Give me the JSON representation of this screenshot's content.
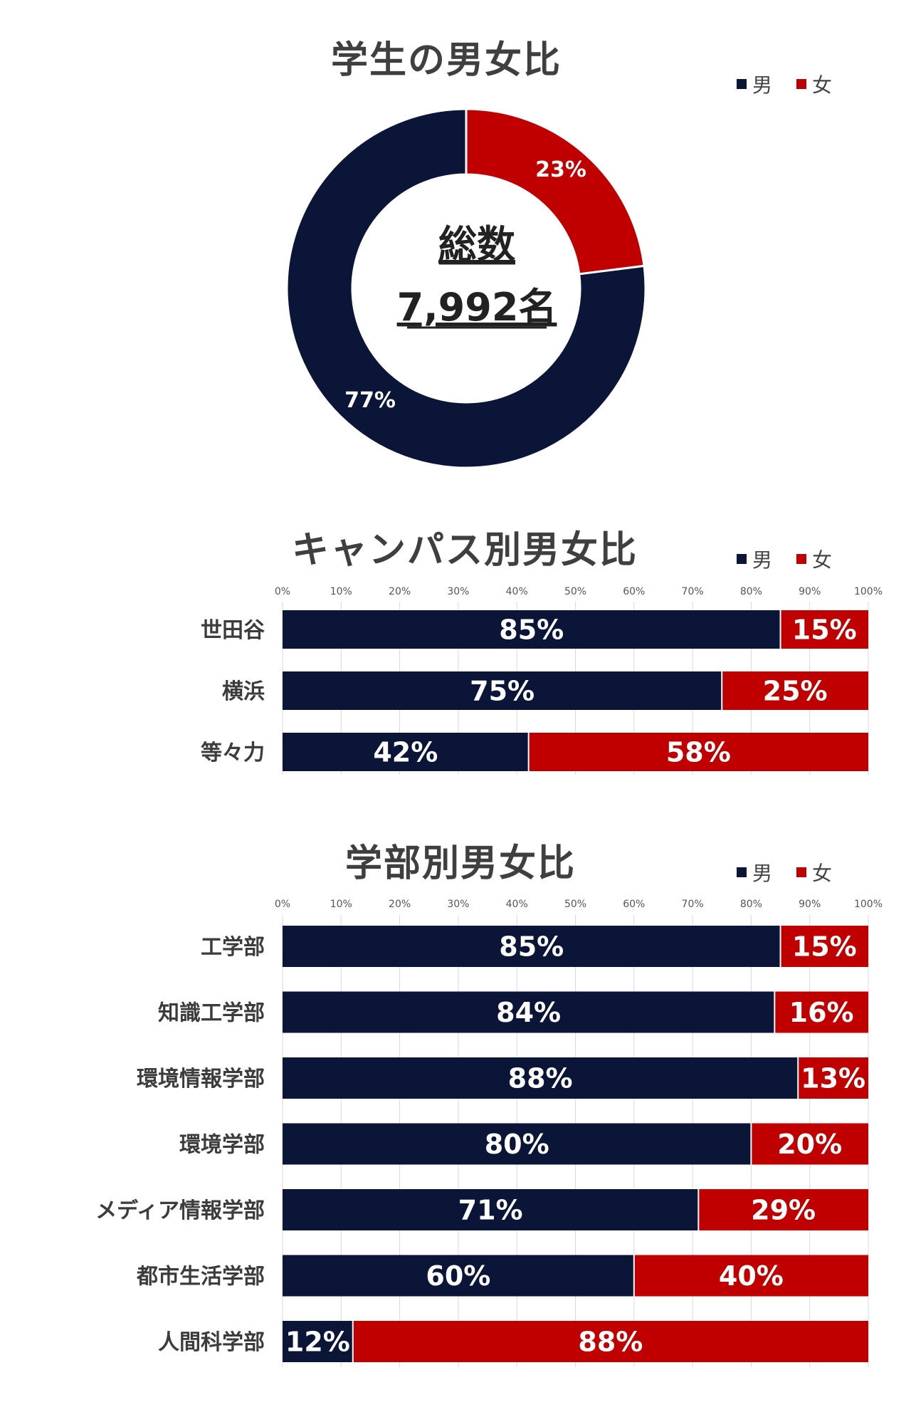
{
  "colors": {
    "male": "#0b1538",
    "female": "#c00000",
    "grid": "#d9d9d9"
  },
  "legend": {
    "male": "男",
    "female": "女"
  },
  "donut": {
    "center_title": "総数",
    "center_value": "7,992名"
  },
  "chart_data": [
    {
      "type": "pie",
      "title": "学生の男女比",
      "variant": "donut",
      "categories": [
        "男",
        "女"
      ],
      "values": [
        77,
        23
      ],
      "labels": [
        "77%",
        "23%"
      ],
      "legend_position": "top-right"
    },
    {
      "type": "bar",
      "orientation": "horizontal",
      "stacked": "percent",
      "title": "キャンパス別男女比",
      "categories": [
        "世田谷",
        "横浜",
        "等々力"
      ],
      "series": [
        {
          "name": "男",
          "values": [
            85,
            75,
            42
          ],
          "labels": [
            "85%",
            "75%",
            "42%"
          ]
        },
        {
          "name": "女",
          "values": [
            15,
            25,
            58
          ],
          "labels": [
            "15%",
            "25%",
            "58%"
          ]
        }
      ],
      "xlim": [
        0,
        100
      ],
      "xticks": [
        "0%",
        "10%",
        "20%",
        "30%",
        "40%",
        "50%",
        "60%",
        "70%",
        "80%",
        "90%",
        "100%"
      ],
      "legend_position": "top-right"
    },
    {
      "type": "bar",
      "orientation": "horizontal",
      "stacked": "percent",
      "title": "学部別男女比",
      "categories": [
        "工学部",
        "知識工学部",
        "環境情報学部",
        "環境学部",
        "メディア情報学部",
        "都市生活学部",
        "人間科学部"
      ],
      "series": [
        {
          "name": "男",
          "values": [
            85,
            84,
            88,
            80,
            71,
            60,
            12
          ],
          "labels": [
            "85%",
            "84%",
            "88%",
            "80%",
            "71%",
            "60%",
            "12%"
          ]
        },
        {
          "name": "女",
          "values": [
            15,
            16,
            13,
            20,
            29,
            40,
            88
          ],
          "labels": [
            "15%",
            "16%",
            "13%",
            "20%",
            "29%",
            "40%",
            "88%"
          ]
        }
      ],
      "xlim": [
        0,
        100
      ],
      "xticks": [
        "0%",
        "10%",
        "20%",
        "30%",
        "40%",
        "50%",
        "60%",
        "70%",
        "80%",
        "90%",
        "100%"
      ],
      "legend_position": "top-right"
    }
  ]
}
